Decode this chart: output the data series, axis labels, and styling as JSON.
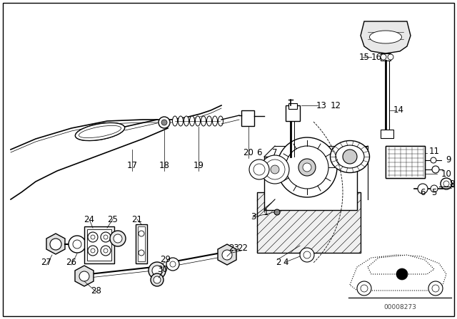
{
  "bg_color": "#ffffff",
  "fig_width": 6.4,
  "fig_height": 4.48,
  "dpi": 100,
  "watermark": "00008273",
  "text_color": "#000000",
  "label_fontsize": 8.5,
  "watermark_fontsize": 6.5
}
